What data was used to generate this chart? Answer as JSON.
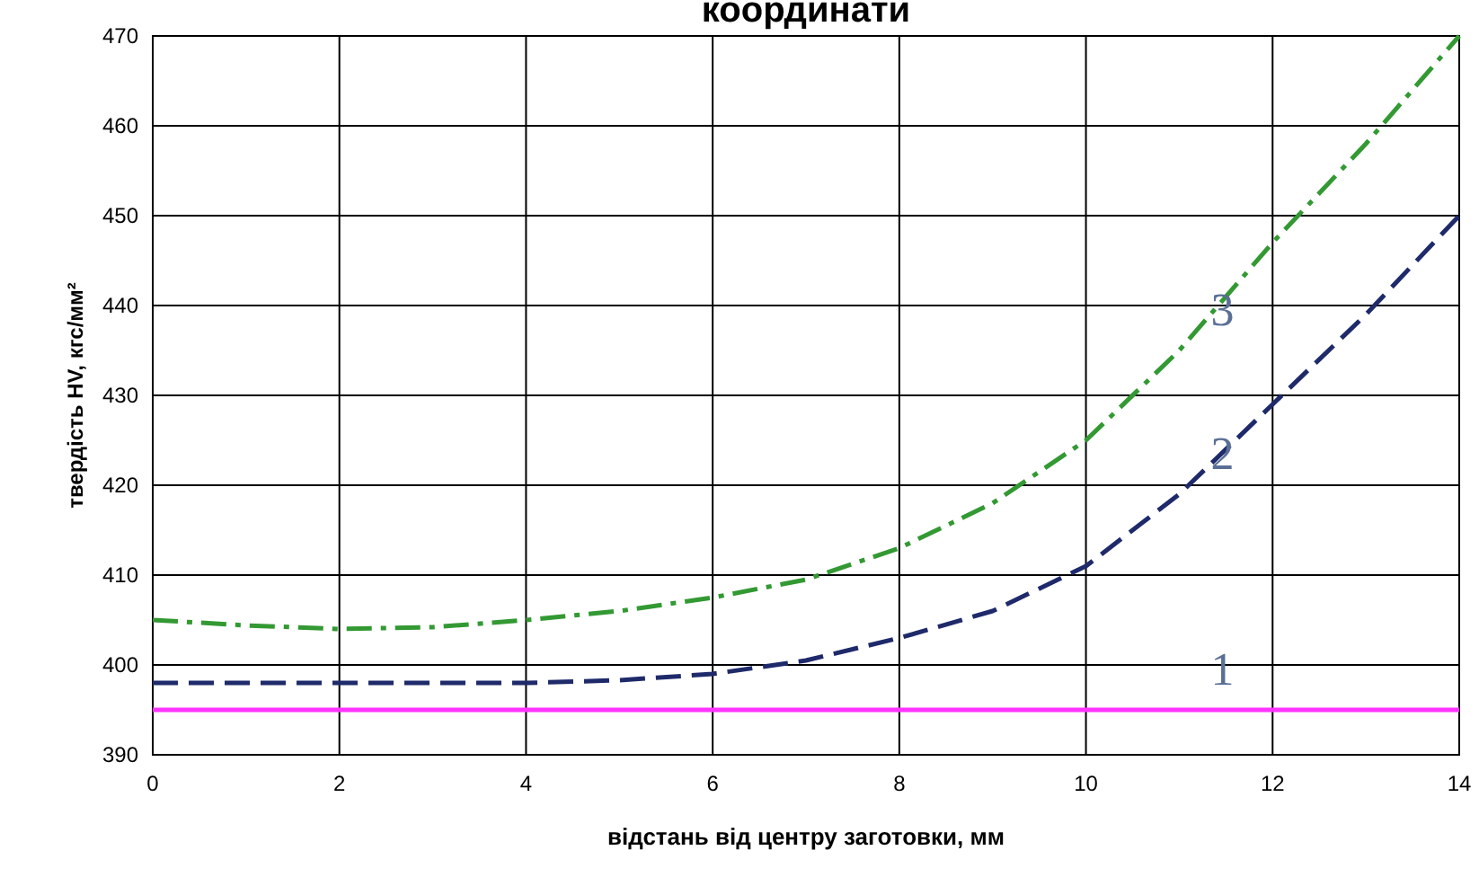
{
  "chart_data": {
    "type": "line",
    "title": "координати",
    "xlabel": "відстань від центру заготовки, мм",
    "ylabel": "твердість HV, кгс/мм²",
    "x": [
      0,
      1,
      2,
      3,
      4,
      5,
      6,
      7,
      8,
      9,
      10,
      11,
      12,
      13,
      14
    ],
    "series": [
      {
        "name": "1",
        "color": "#ff33ff",
        "line_style": "solid",
        "values": [
          395,
          395,
          395,
          395,
          395,
          395,
          395,
          395,
          395,
          395,
          395,
          395,
          395,
          395,
          395
        ]
      },
      {
        "name": "2",
        "color": "#1f2a6b",
        "line_style": "dashed",
        "values": [
          398,
          398,
          398,
          398,
          398,
          398.3,
          399,
          400.5,
          403,
          406,
          411,
          419,
          429,
          439,
          450
        ]
      },
      {
        "name": "3",
        "color": "#339933",
        "line_style": "dashdot",
        "values": [
          405,
          404.4,
          404,
          404.2,
          405,
          406,
          407.5,
          409.5,
          413,
          418,
          425,
          435,
          447,
          458,
          470
        ]
      }
    ],
    "xlim": [
      0,
      14
    ],
    "xticks": [
      0,
      2,
      4,
      6,
      8,
      10,
      12,
      14
    ],
    "ylim": [
      390,
      470
    ],
    "yticks": [
      390,
      400,
      410,
      420,
      430,
      440,
      450,
      460,
      470
    ],
    "grid": true
  }
}
